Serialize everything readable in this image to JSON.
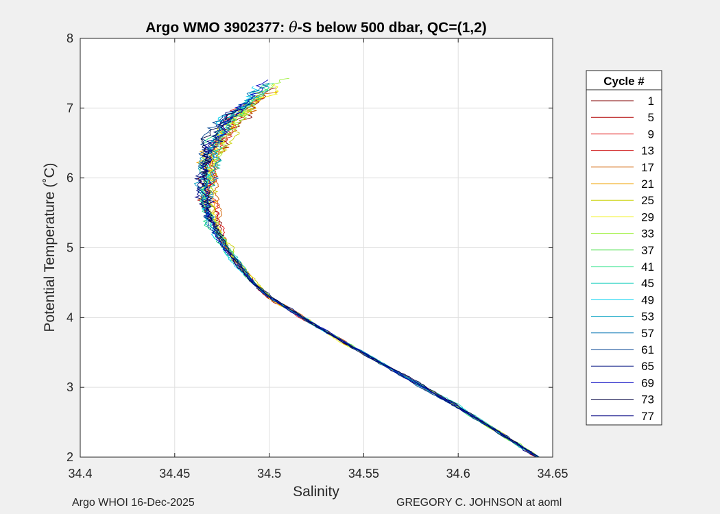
{
  "chart_data": {
    "type": "line",
    "title_prefix": "Argo WMO 3902377: ",
    "title_theta": "θ",
    "title_suffix": "-S below 500 dbar,  QC=(1,2)",
    "xlabel": "Salinity",
    "ylabel": "Potential Temperature (˚C)",
    "xlim": [
      34.4,
      34.65
    ],
    "ylim": [
      2,
      8
    ],
    "xticks": [
      "34.4",
      "34.45",
      "34.5",
      "34.55",
      "34.6",
      "34.65"
    ],
    "xtick_values": [
      34.4,
      34.45,
      34.5,
      34.55,
      34.6,
      34.65
    ],
    "yticks": [
      "2",
      "3",
      "4",
      "5",
      "6",
      "7",
      "8"
    ],
    "ytick_values": [
      2,
      3,
      4,
      5,
      6,
      7,
      8
    ],
    "grid": true,
    "legend_title": "Cycle #",
    "legend_position": "right-outside",
    "legend": [
      {
        "label": "1",
        "color": "#800000"
      },
      {
        "label": "5",
        "color": "#b00000"
      },
      {
        "label": "9",
        "color": "#e00000"
      },
      {
        "label": "13",
        "color": "#d02020"
      },
      {
        "label": "17",
        "color": "#d06000"
      },
      {
        "label": "21",
        "color": "#f0a000"
      },
      {
        "label": "25",
        "color": "#c8d000"
      },
      {
        "label": "29",
        "color": "#f0f000"
      },
      {
        "label": "33",
        "color": "#a0f040"
      },
      {
        "label": "37",
        "color": "#50e050"
      },
      {
        "label": "41",
        "color": "#20e080"
      },
      {
        "label": "45",
        "color": "#20d0c0"
      },
      {
        "label": "49",
        "color": "#00d0f0"
      },
      {
        "label": "53",
        "color": "#00a0c0"
      },
      {
        "label": "57",
        "color": "#0070b0"
      },
      {
        "label": "61",
        "color": "#004090"
      },
      {
        "label": "65",
        "color": "#001080"
      },
      {
        "label": "69",
        "color": "#0000c0"
      },
      {
        "label": "73",
        "color": "#000040"
      },
      {
        "label": "77",
        "color": "#000080"
      }
    ],
    "mean_profile": {
      "s": [
        34.642,
        34.62,
        34.6,
        34.58,
        34.56,
        34.545,
        34.53,
        34.515,
        34.5,
        34.492,
        34.485,
        34.478,
        34.472,
        34.468,
        34.466,
        34.467,
        34.47,
        34.475,
        34.482,
        34.49,
        34.5,
        34.508
      ],
      "t": [
        2.0,
        2.38,
        2.72,
        3.03,
        3.33,
        3.56,
        3.8,
        4.05,
        4.3,
        4.5,
        4.72,
        4.98,
        5.25,
        5.55,
        5.85,
        6.15,
        6.4,
        6.65,
        6.9,
        7.1,
        7.3,
        7.45
      ]
    }
  },
  "footer": {
    "left": "Argo WHOI 16-Dec-2025",
    "right": "GREGORY C. JOHNSON at aoml"
  }
}
